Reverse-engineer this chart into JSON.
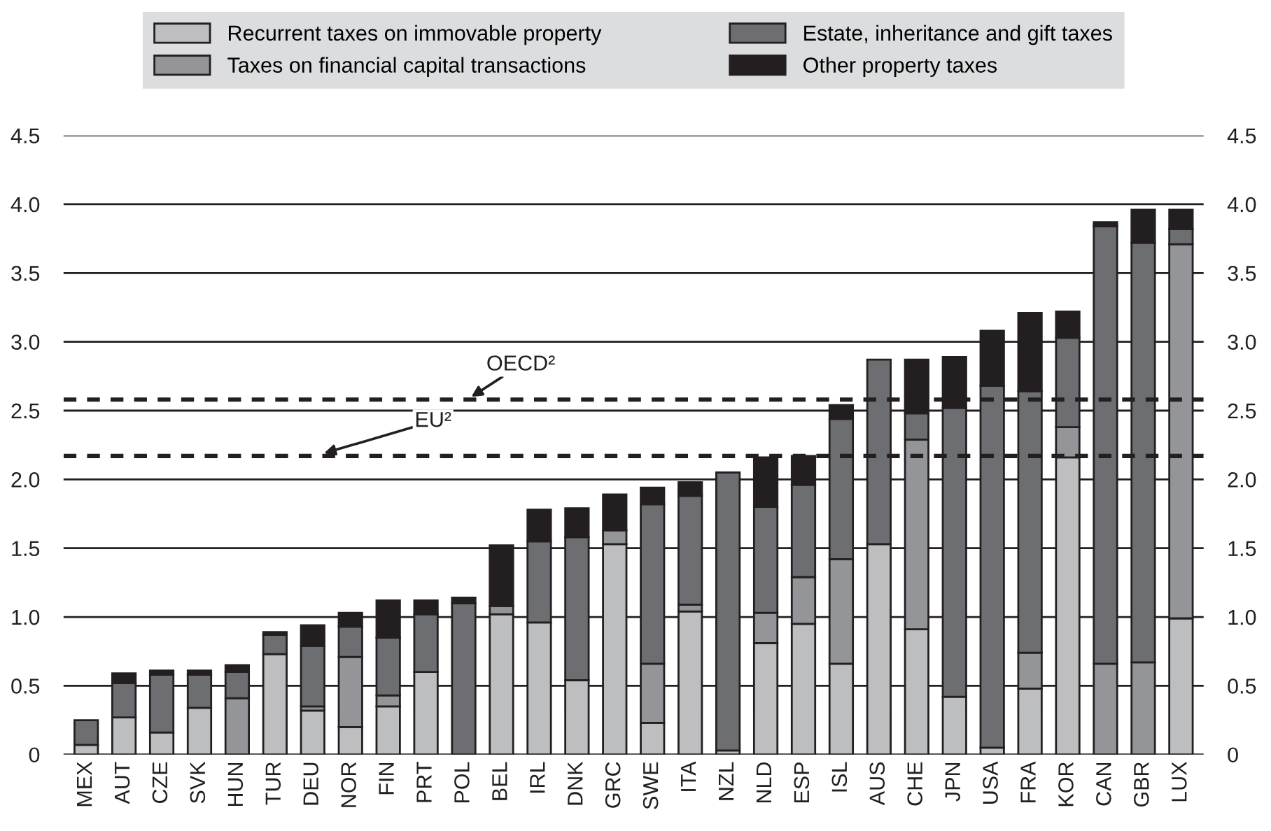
{
  "chart_data": {
    "type": "bar",
    "stacked": true,
    "categories": [
      "MEX",
      "AUT",
      "CZE",
      "SVK",
      "HUN",
      "TUR",
      "DEU",
      "NOR",
      "FIN",
      "PRT",
      "POL",
      "BEL",
      "IRL",
      "DNK",
      "GRC",
      "SWE",
      "ITA",
      "NZL",
      "NLD",
      "ESP",
      "ISL",
      "AUS",
      "CHE",
      "JPN",
      "USA",
      "FRA",
      "KOR",
      "CAN",
      "GBR",
      "LUX"
    ],
    "series": [
      {
        "name": "Recurrent taxes on immovable property",
        "color": "#bdbec0",
        "values": [
          0.07,
          0.27,
          0.16,
          0.34,
          0,
          0.73,
          0.32,
          0.2,
          0.35,
          0.6,
          0,
          1.02,
          0.96,
          0.54,
          1.53,
          0.23,
          1.04,
          0.03,
          0.81,
          0.95,
          0.66,
          1.53,
          0.91,
          0.42,
          0.05,
          0.48,
          2.16,
          0,
          0,
          0.99
        ]
      },
      {
        "name": "Taxes on financial capital transactions",
        "color": "#939598",
        "values": [
          0,
          null,
          0,
          0,
          0.41,
          0,
          0.03,
          0.51,
          0.08,
          0,
          0,
          0.06,
          0,
          0,
          0.1,
          0.43,
          0.05,
          0,
          0.22,
          0.34,
          0.76,
          0,
          1.38,
          0,
          0,
          0.26,
          0.22,
          0.66,
          0.67,
          2.72
        ]
      },
      {
        "name": "Estate, inheritance and gift taxes",
        "color": "#6d6e71",
        "values": [
          0.18,
          0.25,
          0.42,
          0.24,
          0.19,
          0.14,
          0.44,
          0.22,
          0.42,
          0.42,
          1.1,
          0,
          0.59,
          1.04,
          0,
          1.16,
          0.79,
          2.02,
          0.77,
          0.67,
          1.02,
          1.34,
          0.19,
          2.1,
          2.63,
          1.9,
          0.65,
          3.18,
          3.05,
          0.11
        ]
      },
      {
        "name": "Other property taxes",
        "color": "#231f20",
        "values": [
          0,
          0.07,
          0.03,
          0.03,
          0.05,
          0.02,
          0.15,
          0.1,
          0.27,
          0.1,
          0.04,
          0.44,
          0.23,
          0.21,
          0.26,
          0.12,
          0.1,
          0,
          0.36,
          0.21,
          0.1,
          0,
          0.39,
          0.37,
          0.4,
          0.57,
          0.19,
          0.03,
          0.24,
          0.14
        ]
      }
    ],
    "ylim": [
      0,
      4.5
    ],
    "yticks": [
      0,
      {
        "value": 0.5,
        "label": "0.5"
      },
      {
        "value": 1,
        "label": "1.0"
      },
      {
        "value": 1.5,
        "label": "1.5"
      },
      {
        "value": 2,
        "label": "2.0"
      },
      {
        "value": 2.5,
        "label": "2.5"
      },
      {
        "value": 3,
        "label": "3.0"
      },
      {
        "value": 3.5,
        "label": "3.5"
      },
      {
        "value": 4,
        "label": "4.0"
      },
      {
        "value": 4.5,
        "label": "4.5"
      }
    ],
    "y2lim": [
      0,
      4.5
    ],
    "y2ticks": [
      0,
      {
        "value": 0.5,
        "label": "0.5"
      },
      {
        "value": 1,
        "label": "1.0"
      },
      {
        "value": 1.5,
        "label": "1.5"
      },
      {
        "value": 2,
        "label": "2.0"
      },
      {
        "value": 2.5,
        "label": "2.5"
      },
      {
        "value": 3,
        "label": "3.0"
      },
      {
        "value": 3.5,
        "label": "3.5"
      },
      {
        "value": 4,
        "label": "4.0"
      },
      {
        "value": 4.5,
        "label": "4.5"
      }
    ],
    "ref_lines": [
      {
        "axis": "y",
        "value": 2.58,
        "label": "OECD²",
        "color": "#231f20",
        "line_style": "dashed"
      },
      {
        "axis": "y",
        "value": 2.17,
        "label": "EU²",
        "color": "#231f20",
        "line_style": "dashed"
      }
    ],
    "grid": "y",
    "legend": "top"
  }
}
